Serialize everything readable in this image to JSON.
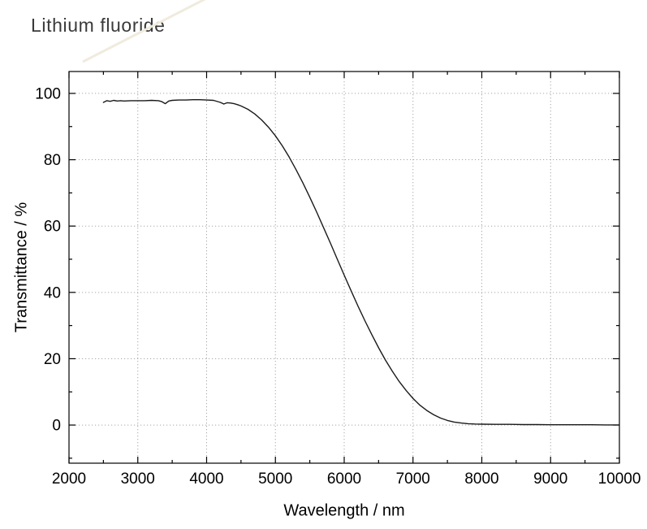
{
  "page": {
    "background": "#ffffff"
  },
  "chart_data": {
    "type": "line",
    "title": "Lithium fluoride",
    "xlabel": "Wavelength / nm",
    "ylabel": "Transmittance / %",
    "xlim": [
      2000,
      10000
    ],
    "ylim": [
      -11.5,
      106.6
    ],
    "xticks": [
      2000,
      3000,
      4000,
      5000,
      6000,
      7000,
      8000,
      9000,
      10000
    ],
    "yticks": [
      0,
      20,
      40,
      60,
      80,
      100
    ],
    "x_minor_step": 500,
    "y_minor_step": 10,
    "grid": true,
    "grid_color": "#a8a8a8",
    "axis_color": "#000000",
    "line_color": "#1a1a1a",
    "legend": "none",
    "series": [
      {
        "name": "transmittance",
        "x": [
          2500,
          2550,
          2600,
          2650,
          2700,
          2750,
          2800,
          2900,
          3000,
          3100,
          3200,
          3300,
          3350,
          3400,
          3450,
          3500,
          3600,
          3700,
          3800,
          3900,
          4000,
          4100,
          4200,
          4250,
          4300,
          4350,
          4400,
          4450,
          4500,
          4600,
          4700,
          4800,
          4900,
          5000,
          5100,
          5200,
          5300,
          5400,
          5500,
          5600,
          5700,
          5800,
          5900,
          6000,
          6100,
          6200,
          6300,
          6400,
          6500,
          6600,
          6700,
          6800,
          6900,
          7000,
          7100,
          7200,
          7300,
          7400,
          7500,
          7600,
          7700,
          7800,
          7900,
          8000,
          8200,
          8400,
          8600,
          8800,
          9000,
          9200,
          9400,
          9600,
          9800,
          10000
        ],
        "y": [
          97.3,
          97.8,
          97.6,
          97.9,
          97.7,
          97.8,
          97.7,
          97.8,
          97.8,
          97.8,
          97.9,
          97.8,
          97.5,
          96.9,
          97.7,
          97.9,
          98.0,
          98.0,
          98.1,
          98.1,
          98.0,
          97.9,
          97.3,
          96.8,
          97.2,
          97.1,
          96.9,
          96.6,
          96.2,
          95.2,
          93.8,
          92.0,
          89.8,
          87.2,
          84.2,
          80.8,
          77.0,
          73.0,
          68.7,
          64.2,
          59.5,
          54.8,
          50.0,
          45.2,
          40.5,
          35.9,
          31.5,
          27.3,
          23.3,
          19.6,
          16.2,
          13.1,
          10.4,
          8.0,
          6.0,
          4.4,
          3.1,
          2.1,
          1.4,
          0.9,
          0.6,
          0.4,
          0.3,
          0.25,
          0.2,
          0.2,
          0.15,
          0.15,
          0.1,
          0.1,
          0.1,
          0.1,
          0.05,
          0.05
        ]
      }
    ]
  }
}
